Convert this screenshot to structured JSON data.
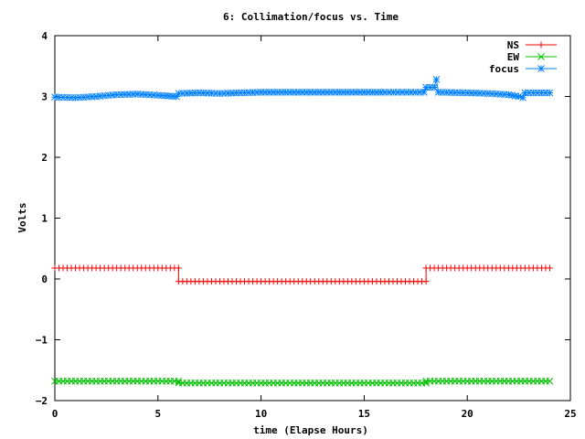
{
  "chart_data": {
    "type": "line",
    "title": "6: Collimation/focus vs. Time",
    "xlabel": "time (Elapse Hours)",
    "ylabel": "Volts",
    "xlim": [
      0,
      25
    ],
    "ylim": [
      -2,
      4
    ],
    "xticks": [
      "0",
      "5",
      "10",
      "15",
      "20",
      "25"
    ],
    "yticks": [
      "−2",
      "−1",
      "0",
      "1",
      "2",
      "3",
      "4"
    ],
    "grid": false,
    "legend_position": "top-right",
    "series": [
      {
        "name": "NS",
        "color": "#ff0000",
        "marker": "plus",
        "segments": [
          {
            "x0": 0.0,
            "x1": 6.0,
            "y": 0.18
          },
          {
            "x0": 6.0,
            "x1": 18.0,
            "y": -0.04
          },
          {
            "x0": 18.0,
            "x1": 24.0,
            "y": 0.18
          }
        ]
      },
      {
        "name": "EW",
        "color": "#00c000",
        "marker": "x",
        "segments": [
          {
            "x0": 0.0,
            "x1": 6.0,
            "y": -1.68
          },
          {
            "x0": 6.0,
            "x1": 18.0,
            "y": -1.71
          },
          {
            "x0": 18.0,
            "x1": 24.0,
            "y": -1.68
          }
        ]
      },
      {
        "name": "focus",
        "color": "#0080ff",
        "marker": "star",
        "points": [
          [
            0.0,
            2.99
          ],
          [
            1.0,
            2.98
          ],
          [
            2.0,
            3.0
          ],
          [
            3.0,
            3.03
          ],
          [
            4.0,
            3.04
          ],
          [
            5.0,
            3.02
          ],
          [
            5.9,
            3.0
          ],
          [
            6.0,
            3.05
          ],
          [
            7.0,
            3.06
          ],
          [
            8.0,
            3.05
          ],
          [
            9.0,
            3.06
          ],
          [
            10.0,
            3.07
          ],
          [
            12.0,
            3.07
          ],
          [
            14.0,
            3.07
          ],
          [
            16.0,
            3.07
          ],
          [
            17.9,
            3.07
          ],
          [
            18.0,
            3.15
          ],
          [
            18.4,
            3.15
          ],
          [
            18.5,
            3.28
          ],
          [
            18.6,
            3.07
          ],
          [
            20.0,
            3.06
          ],
          [
            21.0,
            3.05
          ],
          [
            22.0,
            3.03
          ],
          [
            22.5,
            3.0
          ],
          [
            22.7,
            2.98
          ],
          [
            22.8,
            3.06
          ],
          [
            24.0,
            3.06
          ]
        ]
      }
    ]
  }
}
